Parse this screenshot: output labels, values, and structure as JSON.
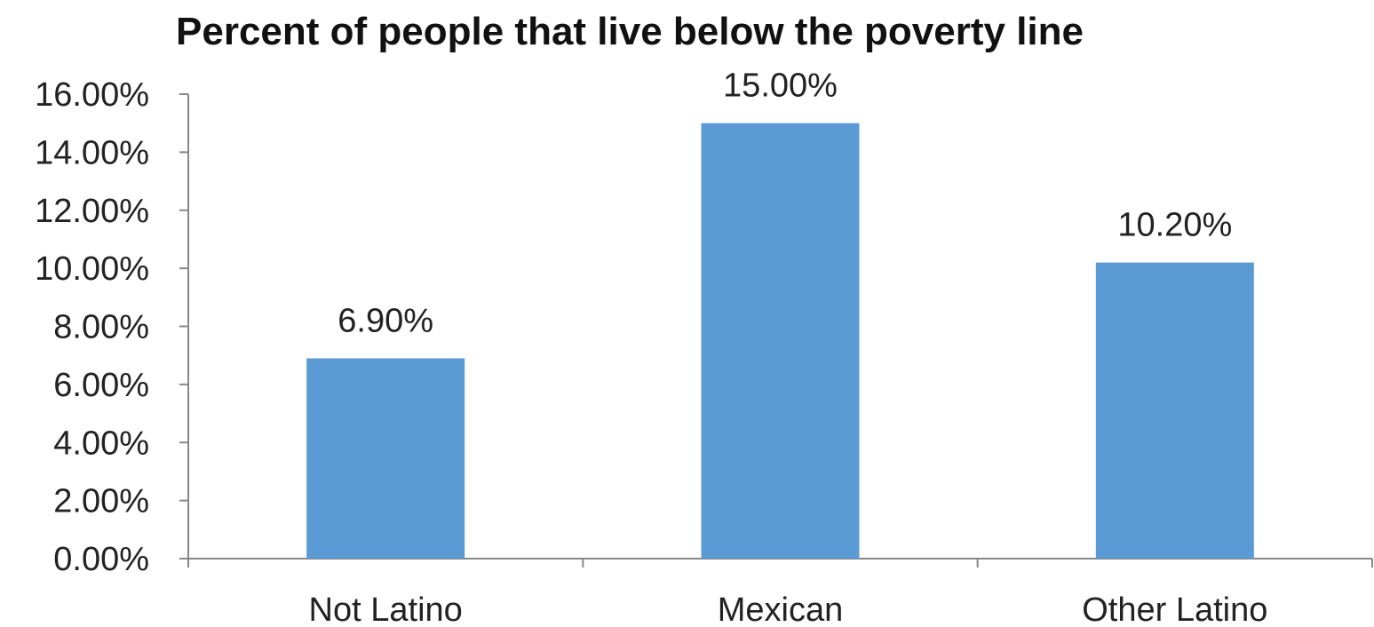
{
  "chart_data": {
    "type": "bar",
    "title": "Percent of people that live below the poverty line",
    "xlabel": "",
    "ylabel": "",
    "categories": [
      "Not Latino",
      "Mexican",
      "Other Latino"
    ],
    "values": [
      6.9,
      15.0,
      10.2
    ],
    "data_labels": [
      "6.90%",
      "15.00%",
      "10.20%"
    ],
    "ylim": [
      0,
      16
    ],
    "yticks": [
      0,
      2,
      4,
      6,
      8,
      10,
      12,
      14,
      16
    ],
    "ytick_labels": [
      "0.00%",
      "2.00%",
      "4.00%",
      "6.00%",
      "8.00%",
      "10.00%",
      "12.00%",
      "14.00%",
      "16.00%"
    ],
    "bar_color": "#5b9bd5",
    "grid": false,
    "legend": "none"
  }
}
